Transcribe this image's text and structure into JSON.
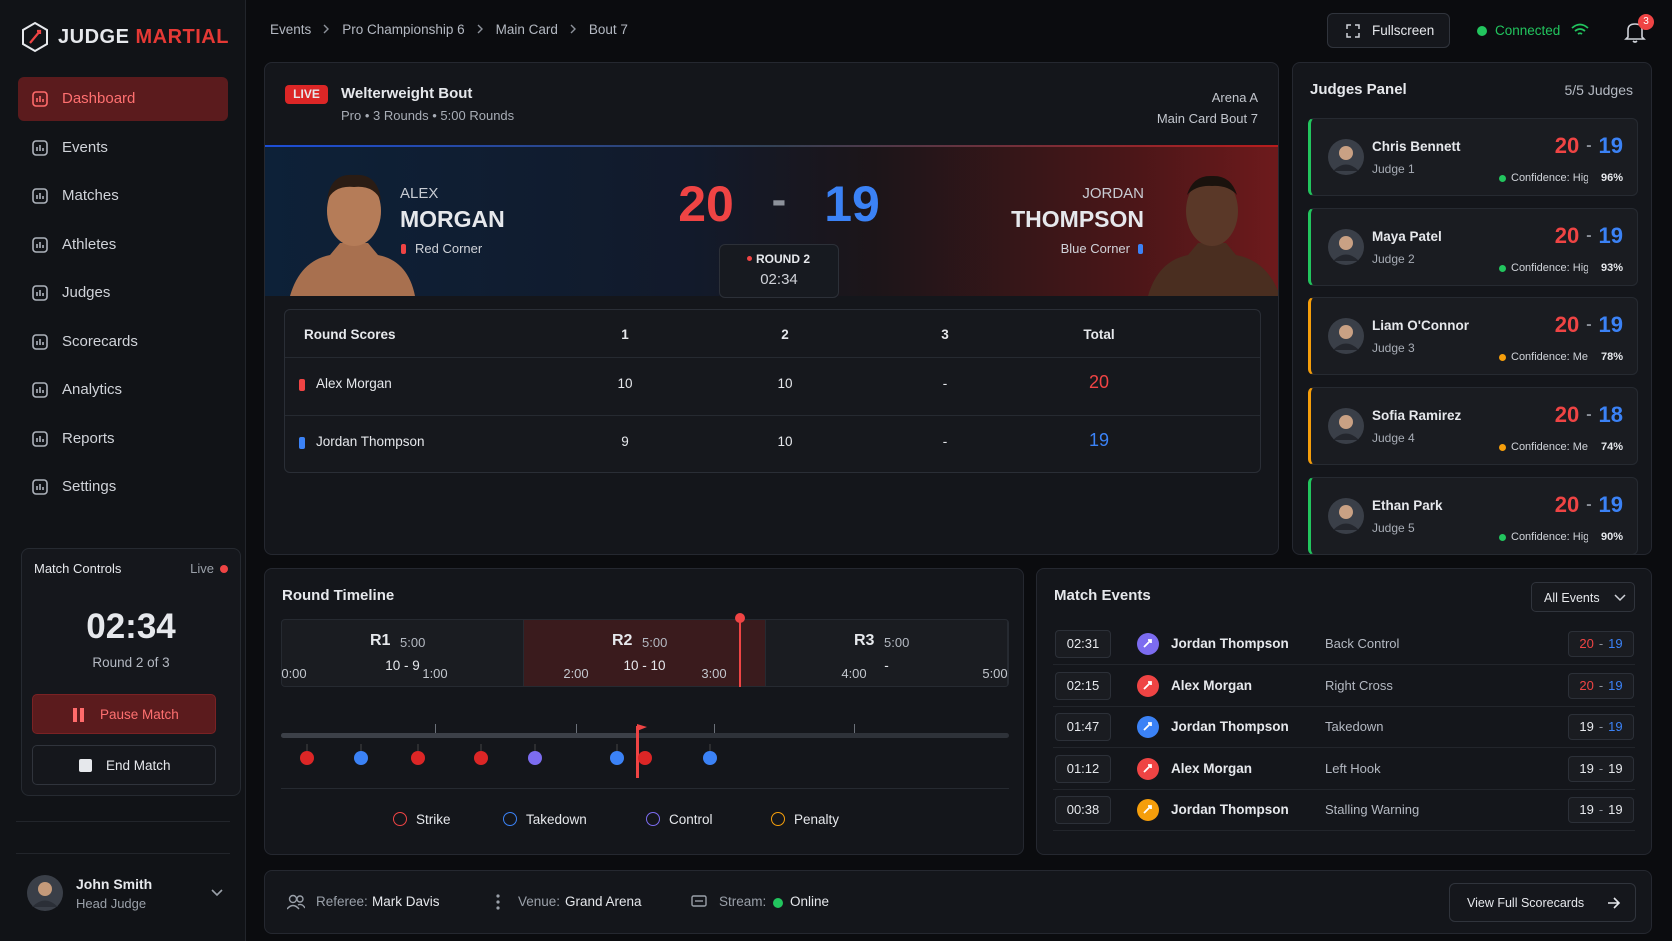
{
  "brand": {
    "first": "JUDGE",
    "second": "MARTIAL"
  },
  "nav": [
    "Dashboard",
    "Events",
    "Matches",
    "Athletes",
    "Judges",
    "Scorecards",
    "Analytics",
    "Reports",
    "Settings"
  ],
  "breadcrumb": [
    "Events",
    "Pro Championship 6",
    "Main Card",
    "Bout 7"
  ],
  "header": {
    "fullscreen": "Fullscreen",
    "status": "Connected",
    "notifications": "3"
  },
  "match_controls": {
    "title": "Match Controls",
    "status": "Live",
    "clock": "02:34",
    "round": "Round 2 of 3",
    "pause": "Pause Match",
    "end": "End Match"
  },
  "user": {
    "name": "John Smith",
    "role": "Head Judge"
  },
  "bout": {
    "badge": "LIVE",
    "title": "Welterweight Bout",
    "subtitle": "Pro • 3 Rounds • 5:00 Rounds",
    "arena": "Arena A",
    "card": "Main Card Bout 7",
    "red": {
      "first": "ALEX",
      "last": "MORGAN",
      "corner": "Red Corner",
      "score": "20",
      "color": "#ef4444"
    },
    "blue": {
      "first": "JORDAN",
      "last": "THOMPSON",
      "corner": "Blue Corner",
      "score": "19",
      "color": "#3b82f6"
    },
    "separator": "-",
    "round": "ROUND 2",
    "clock": "02:34"
  },
  "round_scores": {
    "header": [
      "Round Scores",
      "1",
      "2",
      "3",
      "Total"
    ],
    "rows": [
      {
        "name": "Alex Morgan",
        "scores": [
          "10",
          "10",
          "-"
        ],
        "total": "20",
        "color": "#ef4444"
      },
      {
        "name": "Jordan Thompson",
        "scores": [
          "9",
          "10",
          "-"
        ],
        "total": "19",
        "color": "#3b82f6"
      }
    ]
  },
  "judges": {
    "title": "Judges Panel",
    "count": "5/5 Judges",
    "separator": "-",
    "items": [
      {
        "name": "Chris Bennett",
        "role": "Judge 1",
        "red": "20",
        "blue": "19",
        "confidence": "Confidence: High",
        "percent": "96%",
        "color": "#22c55e"
      },
      {
        "name": "Maya Patel",
        "role": "Judge 2",
        "red": "20",
        "blue": "19",
        "confidence": "Confidence: High",
        "percent": "93%",
        "color": "#22c55e"
      },
      {
        "name": "Liam O'Connor",
        "role": "Judge 3",
        "red": "20",
        "blue": "19",
        "confidence": "Confidence: Medium",
        "percent": "78%",
        "color": "#f59e0b"
      },
      {
        "name": "Sofia Ramirez",
        "role": "Judge 4",
        "red": "20",
        "blue": "18",
        "confidence": "Confidence: Medium",
        "percent": "74%",
        "color": "#f59e0b"
      },
      {
        "name": "Ethan Park",
        "role": "Judge 5",
        "red": "20",
        "blue": "19",
        "confidence": "Confidence: High",
        "percent": "90%",
        "color": "#22c55e"
      }
    ]
  },
  "timeline": {
    "title": "Round Timeline",
    "rounds": [
      {
        "name": "R1",
        "time": "5:00",
        "score": "10 - 9"
      },
      {
        "name": "R2",
        "time": "5:00",
        "score": "10 - 10"
      },
      {
        "name": "R3",
        "time": "5:00",
        "score": "-"
      }
    ],
    "ticks": [
      "0:00",
      "1:00",
      "2:00",
      "3:00",
      "4:00",
      "5:00"
    ],
    "legend": [
      {
        "label": "Strike",
        "color": "#ef4444"
      },
      {
        "label": "Takedown",
        "color": "#3b82f6"
      },
      {
        "label": "Control",
        "color": "#7c6cf0"
      },
      {
        "label": "Penalty",
        "color": "#f59e0b"
      }
    ]
  },
  "events": {
    "title": "Match Events",
    "filter": "All Events",
    "separator": "-",
    "items": [
      {
        "time": "02:31",
        "athlete": "Jordan Thompson",
        "action": "Back Control",
        "red": "20",
        "blue": "19",
        "color": "#7c6cf0",
        "score_colors": [
          "#ef4444",
          "#3b82f6"
        ]
      },
      {
        "time": "02:15",
        "athlete": "Alex Morgan",
        "action": "Right Cross",
        "red": "20",
        "blue": "19",
        "color": "#ef4444",
        "score_colors": [
          "#ef4444",
          "#3b82f6"
        ]
      },
      {
        "time": "01:47",
        "athlete": "Jordan Thompson",
        "action": "Takedown",
        "red": "19",
        "blue": "19",
        "color": "#3b82f6",
        "score_colors": [
          "#e6e8ec",
          "#3b82f6"
        ]
      },
      {
        "time": "01:12",
        "athlete": "Alex Morgan",
        "action": "Left Hook",
        "red": "19",
        "blue": "19",
        "color": "#ef4444",
        "score_colors": [
          "#e6e8ec",
          "#e6e8ec"
        ]
      },
      {
        "time": "00:38",
        "athlete": "Jordan Thompson",
        "action": "Stalling Warning",
        "red": "19",
        "blue": "19",
        "color": "#f59e0b",
        "score_colors": [
          "#e6e8ec",
          "#e6e8ec"
        ]
      }
    ]
  },
  "footer": {
    "referee_label": "Referee:",
    "referee": "Mark Davis",
    "venue_label": "Venue:",
    "venue": "Grand Arena",
    "stream_label": "Stream:",
    "stream": "Online",
    "button": "View Full Scorecards"
  }
}
